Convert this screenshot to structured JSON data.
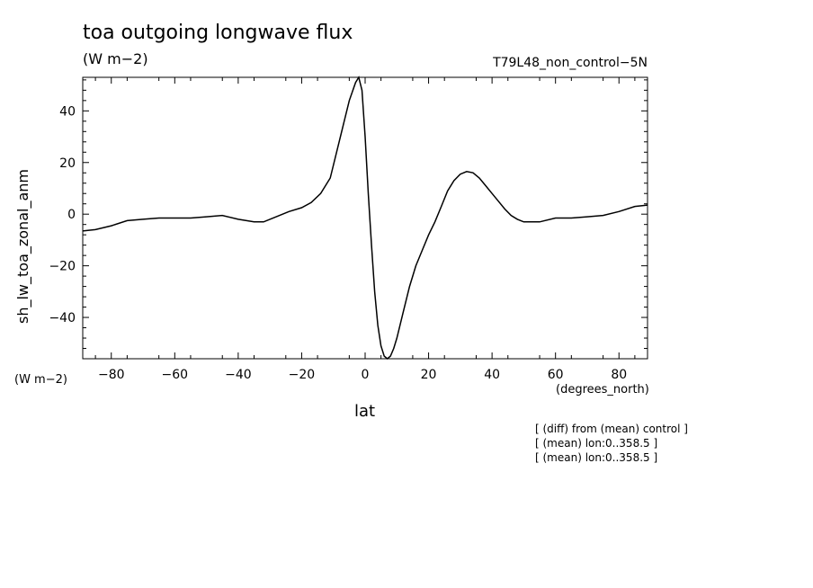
{
  "chart_data": {
    "type": "line",
    "title": "toa outgoing longwave flux",
    "subtitle": "(W m−2)",
    "experiment": "T79L48_non_control−5N",
    "ylabel": "sh_lw_toa_zonal_anm",
    "yunits": "(W m−2)",
    "xlabel": "lat",
    "xunits": "(degrees_north)",
    "xlim": [
      -89,
      89
    ],
    "ylim": [
      -56,
      53
    ],
    "xticks": [
      -80,
      -60,
      -40,
      -20,
      0,
      20,
      40,
      60,
      80
    ],
    "yticks": [
      -40,
      -20,
      0,
      20,
      40
    ],
    "xtick_labels": [
      "−80",
      "−60",
      "−40",
      "−20",
      "0",
      "20",
      "40",
      "60",
      "80"
    ],
    "ytick_labels": [
      "−40",
      "−20",
      "0",
      "20",
      "40"
    ],
    "grid": false,
    "series": [
      {
        "x": [
          -89,
          -85,
          -80,
          -75,
          -70,
          -65,
          -60,
          -55,
          -50,
          -45,
          -40,
          -35,
          -32,
          -28,
          -24,
          -20,
          -17,
          -14,
          -11,
          -8,
          -5,
          -3,
          -2,
          -1,
          0,
          1,
          2,
          3,
          4,
          5,
          6,
          7,
          8,
          9,
          10,
          12,
          14,
          16,
          18,
          20,
          22,
          24,
          26,
          28,
          30,
          32,
          34,
          36,
          38,
          40,
          42,
          44,
          46,
          48,
          50,
          55,
          60,
          65,
          70,
          75,
          80,
          85,
          89
        ],
        "y": [
          -6.5,
          -6,
          -4.5,
          -2.5,
          -2,
          -1.5,
          -1.5,
          -1.5,
          -1,
          -0.5,
          -2,
          -3,
          -3,
          -1,
          1,
          2.5,
          4.5,
          8,
          14,
          29,
          44,
          51,
          53,
          48,
          30,
          8,
          -12,
          -30,
          -43,
          -51,
          -55,
          -56,
          -55,
          -52,
          -48,
          -38,
          -28,
          -20,
          -14,
          -8,
          -3,
          3,
          9,
          13,
          15.5,
          16.5,
          16,
          14,
          11,
          8,
          5,
          2,
          -0.5,
          -2,
          -3,
          -3,
          -1.5,
          -1.5,
          -1,
          -0.5,
          1,
          3,
          3.5
        ]
      }
    ],
    "annotations": [
      "[ (diff) from (mean) control ]",
      "[ (mean) lon:0..358.5 ]",
      "[ (mean) lon:0..358.5 ]"
    ]
  }
}
